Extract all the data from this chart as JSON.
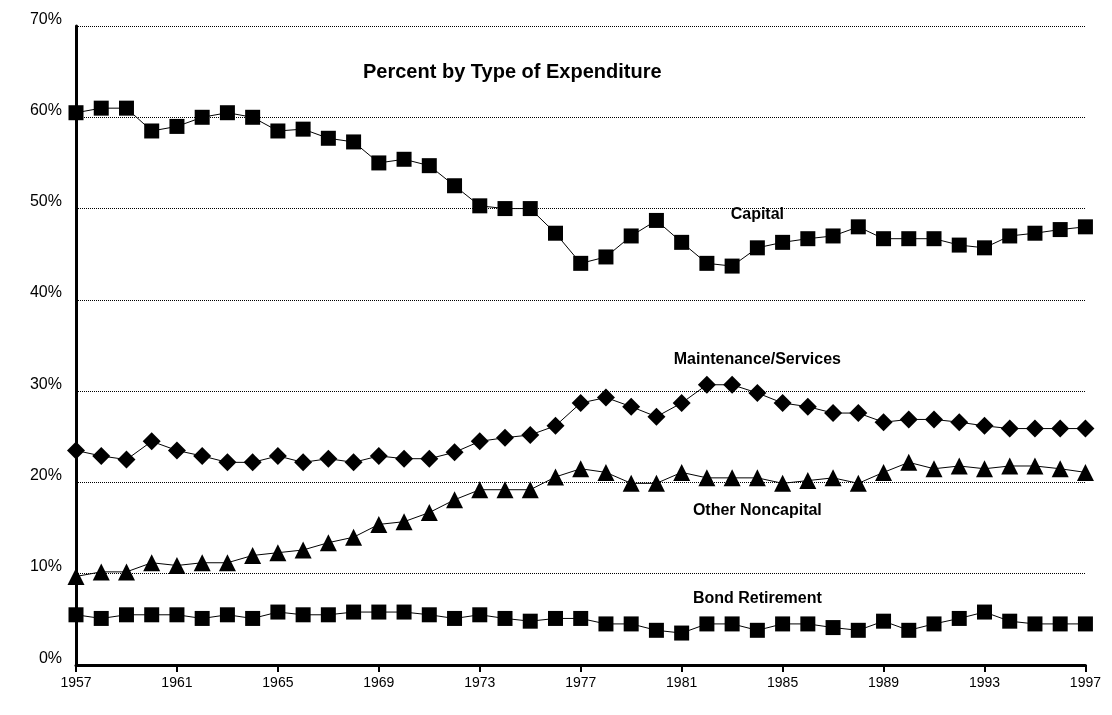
{
  "chart_data": {
    "type": "line",
    "title": "Percent by Type of Expenditure",
    "x": [
      1957,
      1958,
      1959,
      1960,
      1961,
      1962,
      1963,
      1964,
      1965,
      1966,
      1967,
      1968,
      1969,
      1970,
      1971,
      1972,
      1973,
      1974,
      1975,
      1976,
      1977,
      1978,
      1979,
      1980,
      1981,
      1982,
      1983,
      1984,
      1985,
      1986,
      1987,
      1988,
      1989,
      1990,
      1991,
      1992,
      1993,
      1994,
      1995,
      1996,
      1997
    ],
    "series": [
      {
        "name": "Capital",
        "color": "#000000",
        "marker": "square",
        "values": [
          60.5,
          61,
          61,
          58.5,
          59,
          60,
          60.5,
          60,
          58.5,
          58.7,
          57.7,
          57.3,
          55,
          55.4,
          54.7,
          52.5,
          50.3,
          50,
          50,
          47.3,
          44,
          44.7,
          47,
          48.7,
          46.3,
          44,
          43.7,
          45.7,
          46.3,
          46.7,
          47,
          48,
          46.7,
          46.7,
          46.7,
          46,
          45.7,
          47,
          47.3,
          47.7,
          48
        ]
      },
      {
        "name": "Maintenance/Services",
        "color": "#000000",
        "marker": "diamond",
        "values": [
          23.5,
          22.9,
          22.5,
          24.5,
          23.5,
          22.9,
          22.2,
          22.2,
          22.9,
          22.2,
          22.6,
          22.2,
          22.9,
          22.6,
          22.6,
          23.3,
          24.5,
          24.9,
          25.2,
          26.2,
          28.7,
          29.3,
          28.3,
          27.2,
          28.7,
          30.7,
          30.7,
          29.8,
          28.7,
          28.3,
          27.6,
          27.6,
          26.6,
          26.9,
          26.9,
          26.6,
          26.2,
          25.9,
          25.9,
          25.9,
          25.9
        ]
      },
      {
        "name": "Other Noncapital",
        "color": "#000000",
        "marker": "triangle",
        "values": [
          9.7,
          10.2,
          10.2,
          11.2,
          10.9,
          11.2,
          11.2,
          12,
          12.3,
          12.6,
          13.4,
          14,
          15.4,
          15.7,
          16.7,
          18.1,
          19.2,
          19.2,
          19.2,
          20.6,
          21.5,
          21.1,
          19.9,
          19.9,
          21.1,
          20.5,
          20.5,
          20.5,
          19.9,
          20.2,
          20.5,
          19.9,
          21.1,
          22.2,
          21.5,
          21.8,
          21.5,
          21.8,
          21.8,
          21.5,
          21.1
        ]
      },
      {
        "name": "Bond Retirement",
        "color": "#000000",
        "marker": "square",
        "values": [
          5.5,
          5.1,
          5.5,
          5.5,
          5.5,
          5.1,
          5.5,
          5.1,
          5.8,
          5.5,
          5.5,
          5.8,
          5.8,
          5.8,
          5.5,
          5.1,
          5.5,
          5.1,
          4.8,
          5.1,
          5.1,
          4.5,
          4.5,
          3.8,
          3.5,
          4.5,
          4.5,
          3.8,
          4.5,
          4.5,
          4.1,
          3.8,
          4.8,
          3.8,
          4.5,
          5.1,
          5.8,
          4.8,
          4.5,
          4.5,
          4.5
        ]
      }
    ],
    "xlim": [
      1957,
      1997
    ],
    "xticks": [
      1957,
      1961,
      1965,
      1969,
      1973,
      1977,
      1981,
      1985,
      1989,
      1993,
      1997
    ],
    "ylim": [
      0,
      70
    ],
    "yticks": [
      {
        "value": 0,
        "label": "0%"
      },
      {
        "value": 10,
        "label": "10%"
      },
      {
        "value": 20,
        "label": "20%"
      },
      {
        "value": 30,
        "label": "30%"
      },
      {
        "value": 40,
        "label": "40%"
      },
      {
        "value": 50,
        "label": "50%"
      },
      {
        "value": 60,
        "label": "60%"
      },
      {
        "value": 70,
        "label": "70%"
      }
    ],
    "grid": "y",
    "legend": false,
    "line_style": "solid"
  }
}
